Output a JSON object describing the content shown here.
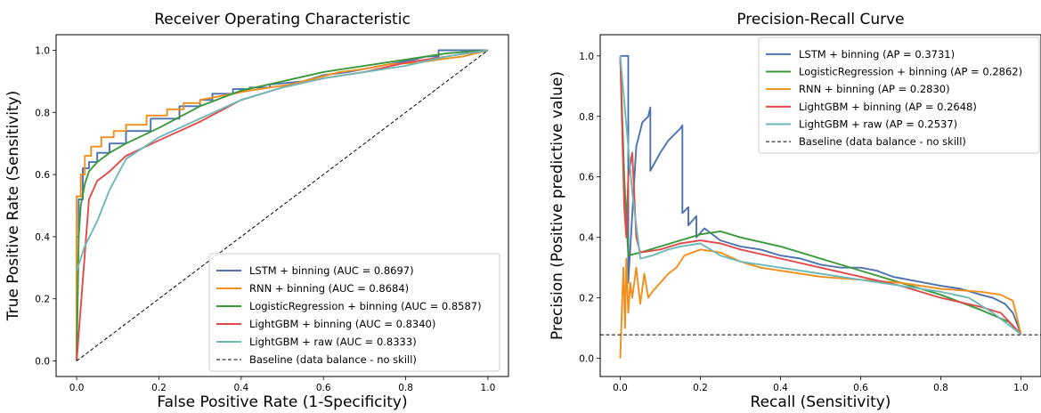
{
  "chart_data": [
    {
      "type": "line",
      "title": "Receiver Operating Characteristic",
      "xlabel": "False Positive Rate (1-Specificity)",
      "ylabel": "True Positive Rate (Sensitivity)",
      "xlim": [
        -0.05,
        1.05
      ],
      "ylim": [
        -0.05,
        1.05
      ],
      "xticks": [
        "0.0",
        "0.2",
        "0.4",
        "0.6",
        "0.8",
        "1.0"
      ],
      "yticks": [
        "0.0",
        "0.2",
        "0.4",
        "0.6",
        "0.8",
        "1.0"
      ],
      "grid": false,
      "legend_position": "lower-right",
      "series": [
        {
          "name": "LSTM + binning (AUC = 0.8697)",
          "color": "#4c72b0",
          "style": "solid",
          "x": [
            0,
            0,
            0.005,
            0.005,
            0.015,
            0.015,
            0.03,
            0.03,
            0.05,
            0.05,
            0.08,
            0.08,
            0.12,
            0.12,
            0.18,
            0.18,
            0.25,
            0.25,
            0.3,
            0.3,
            0.33,
            0.33,
            0.38,
            0.38,
            0.42,
            0.42,
            0.47,
            0.47,
            0.55,
            0.6,
            0.66,
            0.7,
            0.78,
            0.82,
            0.85,
            0.88,
            0.88,
            0.95,
            1.0
          ],
          "y": [
            0,
            0.4,
            0.4,
            0.52,
            0.52,
            0.62,
            0.62,
            0.64,
            0.64,
            0.67,
            0.67,
            0.7,
            0.7,
            0.74,
            0.74,
            0.78,
            0.78,
            0.82,
            0.82,
            0.84,
            0.84,
            0.86,
            0.86,
            0.875,
            0.875,
            0.88,
            0.88,
            0.89,
            0.9,
            0.92,
            0.93,
            0.94,
            0.96,
            0.97,
            0.98,
            0.98,
            1.0,
            1.0,
            1.0
          ]
        },
        {
          "name": "RNN + binning (AUC = 0.8684)",
          "color": "#f28e1c",
          "style": "solid",
          "x": [
            0,
            0,
            0.01,
            0.01,
            0.02,
            0.02,
            0.035,
            0.035,
            0.06,
            0.06,
            0.09,
            0.09,
            0.12,
            0.12,
            0.17,
            0.17,
            0.22,
            0.22,
            0.26,
            0.26,
            0.3,
            0.3,
            0.34,
            0.38,
            0.42,
            0.47,
            0.52,
            0.58,
            0.64,
            0.7,
            0.76,
            0.83,
            0.88,
            0.94,
            1.0
          ],
          "y": [
            0,
            0.53,
            0.53,
            0.6,
            0.6,
            0.66,
            0.66,
            0.69,
            0.69,
            0.72,
            0.72,
            0.74,
            0.74,
            0.76,
            0.76,
            0.79,
            0.79,
            0.81,
            0.81,
            0.83,
            0.83,
            0.84,
            0.85,
            0.86,
            0.87,
            0.88,
            0.89,
            0.91,
            0.93,
            0.94,
            0.955,
            0.96,
            0.97,
            0.98,
            1.0
          ]
        },
        {
          "name": "LogisticRegression + binning (AUC = 0.8587)",
          "color": "#3a9a3a",
          "style": "solid",
          "x": [
            0,
            0.005,
            0.01,
            0.02,
            0.03,
            0.05,
            0.08,
            0.12,
            0.2,
            0.3,
            0.4,
            0.5,
            0.6,
            0.7,
            0.8,
            0.9,
            1.0
          ],
          "y": [
            0,
            0.4,
            0.5,
            0.57,
            0.61,
            0.64,
            0.67,
            0.7,
            0.75,
            0.82,
            0.87,
            0.9,
            0.93,
            0.95,
            0.97,
            0.99,
            1.0
          ]
        },
        {
          "name": "LightGBM + binning (AUC = 0.8340)",
          "color": "#e24a4a",
          "style": "solid",
          "x": [
            0,
            0.03,
            0.05,
            0.08,
            0.12,
            0.2,
            0.3,
            0.4,
            0.5,
            0.6,
            0.7,
            0.8,
            0.9,
            1.0
          ],
          "y": [
            0,
            0.52,
            0.58,
            0.61,
            0.66,
            0.71,
            0.77,
            0.84,
            0.88,
            0.91,
            0.93,
            0.96,
            0.98,
            1.0
          ]
        },
        {
          "name": "LightGBM + raw (AUC = 0.8333)",
          "color": "#6fb8b8",
          "style": "solid",
          "x": [
            0,
            0.02,
            0.05,
            0.08,
            0.12,
            0.2,
            0.3,
            0.4,
            0.5,
            0.6,
            0.7,
            0.8,
            0.9,
            1.0
          ],
          "y": [
            0.29,
            0.37,
            0.45,
            0.55,
            0.65,
            0.72,
            0.78,
            0.84,
            0.88,
            0.91,
            0.93,
            0.95,
            0.98,
            1.0
          ]
        },
        {
          "name": "Baseline (data balance - no skill)",
          "color": "#000000",
          "style": "dashed",
          "x": [
            0,
            1
          ],
          "y": [
            0,
            1
          ]
        }
      ]
    },
    {
      "type": "line",
      "title": "Precision-Recall Curve",
      "xlabel": "Recall (Sensitivity)",
      "ylabel": "Precision (Positive predictive value)",
      "xlim": [
        -0.05,
        1.05
      ],
      "ylim": [
        -0.06,
        1.07
      ],
      "xticks": [
        "0.0",
        "0.2",
        "0.4",
        "0.6",
        "0.8",
        "1.0"
      ],
      "yticks": [
        "0.0",
        "0.2",
        "0.4",
        "0.6",
        "0.8",
        "1.0"
      ],
      "grid": false,
      "legend_position": "upper-right",
      "series": [
        {
          "name": "LSTM + binning (AP = 0.3731)",
          "color": "#4c72b0",
          "style": "solid",
          "x": [
            0,
            0,
            0.02,
            0.02,
            0.04,
            0.055,
            0.07,
            0.075,
            0.075,
            0.1,
            0.12,
            0.15,
            0.155,
            0.155,
            0.17,
            0.17,
            0.19,
            0.19,
            0.21,
            0.25,
            0.3,
            0.35,
            0.4,
            0.45,
            0.5,
            0.55,
            0.6,
            0.64,
            0.68,
            0.72,
            0.76,
            0.8,
            0.85,
            0.9,
            0.93,
            0.96,
            0.98,
            1.0
          ],
          "y": [
            1.0,
            1.0,
            1.0,
            0.25,
            0.7,
            0.78,
            0.8,
            0.83,
            0.62,
            0.68,
            0.72,
            0.76,
            0.77,
            0.48,
            0.5,
            0.44,
            0.47,
            0.4,
            0.43,
            0.39,
            0.37,
            0.36,
            0.34,
            0.33,
            0.31,
            0.3,
            0.3,
            0.29,
            0.27,
            0.26,
            0.25,
            0.24,
            0.23,
            0.21,
            0.2,
            0.18,
            0.15,
            0.08
          ]
        },
        {
          "name": "LogisticRegression + binning (AP = 0.2862)",
          "color": "#3a9a3a",
          "style": "solid",
          "x": [
            0,
            0.01,
            0.02,
            0.05,
            0.1,
            0.15,
            0.2,
            0.25,
            0.3,
            0.4,
            0.5,
            0.6,
            0.7,
            0.8,
            0.9,
            0.97,
            1.0
          ],
          "y": [
            1.0,
            0.6,
            0.34,
            0.35,
            0.37,
            0.39,
            0.41,
            0.42,
            0.4,
            0.37,
            0.33,
            0.29,
            0.25,
            0.21,
            0.16,
            0.12,
            0.08
          ]
        },
        {
          "name": "RNN + binning (AP = 0.2830)",
          "color": "#f28e1c",
          "style": "solid",
          "x": [
            0,
            0.005,
            0.008,
            0.012,
            0.015,
            0.02,
            0.025,
            0.03,
            0.04,
            0.05,
            0.06,
            0.07,
            0.08,
            0.1,
            0.12,
            0.14,
            0.16,
            0.2,
            0.25,
            0.3,
            0.35,
            0.4,
            0.5,
            0.6,
            0.7,
            0.8,
            0.9,
            0.95,
            0.98,
            1.0
          ],
          "y": [
            0.0,
            0.2,
            0.3,
            0.1,
            0.33,
            0.15,
            0.25,
            0.2,
            0.3,
            0.18,
            0.28,
            0.2,
            0.22,
            0.25,
            0.28,
            0.3,
            0.34,
            0.36,
            0.35,
            0.32,
            0.3,
            0.29,
            0.27,
            0.26,
            0.25,
            0.23,
            0.22,
            0.21,
            0.19,
            0.08
          ]
        },
        {
          "name": "LightGBM + binning (AP = 0.2648)",
          "color": "#e24a4a",
          "style": "solid",
          "x": [
            0,
            0.01,
            0.015,
            0.02,
            0.03,
            0.04,
            0.05,
            0.1,
            0.15,
            0.2,
            0.25,
            0.3,
            0.4,
            0.5,
            0.6,
            0.7,
            0.8,
            0.9,
            0.95,
            1.0
          ],
          "y": [
            1.0,
            0.5,
            0.4,
            0.6,
            0.68,
            0.4,
            0.35,
            0.36,
            0.38,
            0.39,
            0.38,
            0.36,
            0.33,
            0.3,
            0.27,
            0.24,
            0.2,
            0.17,
            0.15,
            0.08
          ]
        },
        {
          "name": "LightGBM + raw (AP = 0.2537)",
          "color": "#6fb8b8",
          "style": "solid",
          "x": [
            0,
            0.01,
            0.02,
            0.03,
            0.05,
            0.08,
            0.12,
            0.15,
            0.2,
            0.25,
            0.3,
            0.4,
            0.5,
            0.6,
            0.7,
            0.8,
            0.87,
            0.93,
            1.0
          ],
          "y": [
            1.0,
            0.85,
            0.7,
            0.55,
            0.33,
            0.34,
            0.36,
            0.37,
            0.38,
            0.34,
            0.32,
            0.3,
            0.28,
            0.26,
            0.24,
            0.22,
            0.2,
            0.15,
            0.08
          ]
        },
        {
          "name": "Baseline (data balance - no skill)",
          "color": "#000000",
          "style": "dashed",
          "x": [
            -0.05,
            1.05
          ],
          "y": [
            0.078,
            0.078
          ]
        }
      ]
    }
  ]
}
